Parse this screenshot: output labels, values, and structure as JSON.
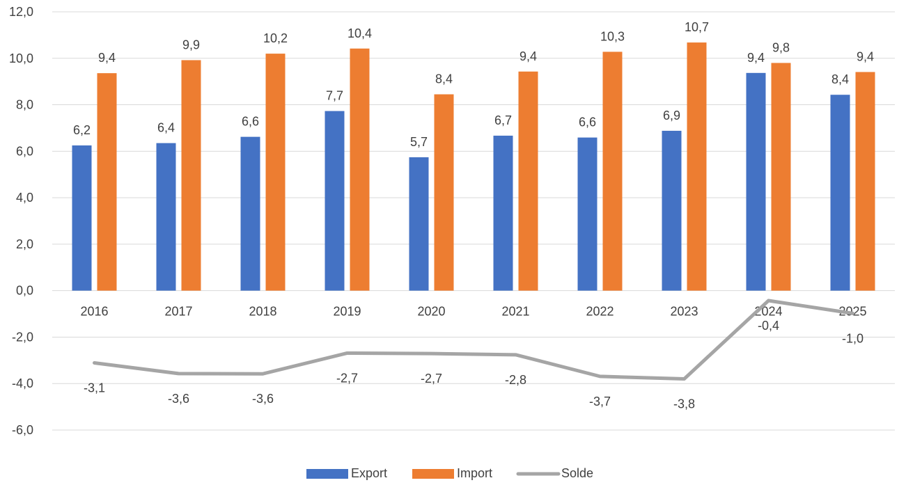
{
  "chart_data": {
    "type": "bar",
    "categories": [
      "2016",
      "2017",
      "2018",
      "2019",
      "2020",
      "2021",
      "2022",
      "2023",
      "2024",
      "2025"
    ],
    "series": [
      {
        "name": "Export",
        "type": "bar",
        "color": "#4472c4",
        "values": [
          6.25,
          6.35,
          6.62,
          7.73,
          5.74,
          6.67,
          6.59,
          6.88,
          9.37,
          8.43
        ],
        "labels": [
          "6,2",
          "6,4",
          "6,6",
          "7,7",
          "5,7",
          "6,7",
          "6,6",
          "6,9",
          "9,4",
          "8,4"
        ]
      },
      {
        "name": "Import",
        "type": "bar",
        "color": "#ed7d31",
        "values": [
          9.36,
          9.92,
          10.2,
          10.42,
          8.45,
          9.43,
          10.28,
          10.68,
          9.8,
          9.41
        ],
        "labels": [
          "9,4",
          "9,9",
          "10,2",
          "10,4",
          "8,4",
          "9,4",
          "10,3",
          "10,7",
          "9,8",
          "9,4"
        ]
      },
      {
        "name": "Solde",
        "type": "line",
        "color": "#a5a5a5",
        "values": [
          -3.11,
          -3.57,
          -3.58,
          -2.69,
          -2.71,
          -2.76,
          -3.69,
          -3.8,
          -0.43,
          -0.98
        ],
        "labels": [
          "-3,1",
          "-3,6",
          "-3,6",
          "-2,7",
          "-2,7",
          "-2,8",
          "-3,7",
          "-3,8",
          "-0,4",
          "-1,0"
        ]
      }
    ],
    "title": "",
    "xlabel": "",
    "ylabel": "",
    "ylim": [
      -6,
      12
    ],
    "yticks": [
      "12,0",
      "10,0",
      "8,0",
      "6,0",
      "4,0",
      "2,0",
      "0,0",
      "-2,0",
      "-4,0",
      "-6,0"
    ],
    "grid": true,
    "legend_position": "bottom"
  }
}
